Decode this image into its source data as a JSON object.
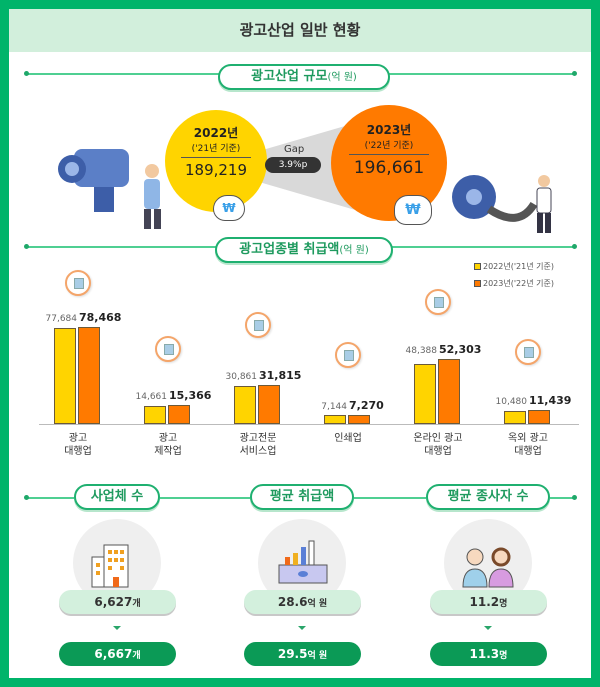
{
  "title": "광고산업 일반 현황",
  "scale": {
    "heading": "광고산업 규모",
    "unit": "(억 원)",
    "left": {
      "year": "2022년",
      "basis": "('21년 기준)",
      "value": "189,219",
      "color": "#ffd400"
    },
    "right": {
      "year": "2023년",
      "basis": "('22년 기준)",
      "value": "196,661",
      "color": "#ff7a00"
    },
    "gap_label": "Gap",
    "gap_value": "3.9%p"
  },
  "revenue": {
    "heading": "광고업종별 취급액",
    "unit": "(억 원)"
  },
  "chart_data": {
    "type": "bar",
    "categories": [
      "광고\n대행업",
      "광고\n제작업",
      "광고전문\n서비스업",
      "인쇄업",
      "온라인 광고\n대행업",
      "옥외 광고\n대행업"
    ],
    "series": [
      {
        "name": "2022년('21년 기준)",
        "color": "#ffd400",
        "values": [
          77684,
          14661,
          30861,
          7144,
          48388,
          10480
        ],
        "labels": [
          "77,684",
          "14,661",
          "30,861",
          "7,144",
          "48,388",
          "10,480"
        ]
      },
      {
        "name": "2023년('22년 기준)",
        "color": "#ff7a00",
        "values": [
          78468,
          15366,
          31815,
          7270,
          52303,
          11439
        ],
        "labels": [
          "78,468",
          "15,366",
          "31,815",
          "7,270",
          "52,303",
          "11,439"
        ]
      }
    ],
    "ylim": [
      0,
      80000
    ],
    "grid": false,
    "legend": "top-right"
  },
  "stats": [
    {
      "heading": "사업체 수",
      "before": "6,627",
      "before_unit": "개",
      "after": "6,667",
      "after_unit": "개",
      "icon": "building-icon"
    },
    {
      "heading": "평균 취급액",
      "before": "28.6",
      "before_unit": "억 원",
      "after": "29.5",
      "after_unit": "억 원",
      "icon": "money-chart-icon"
    },
    {
      "heading": "평균 종사자 수",
      "before": "11.2",
      "before_unit": "명",
      "after": "11.3",
      "after_unit": "명",
      "icon": "people-icon"
    }
  ]
}
